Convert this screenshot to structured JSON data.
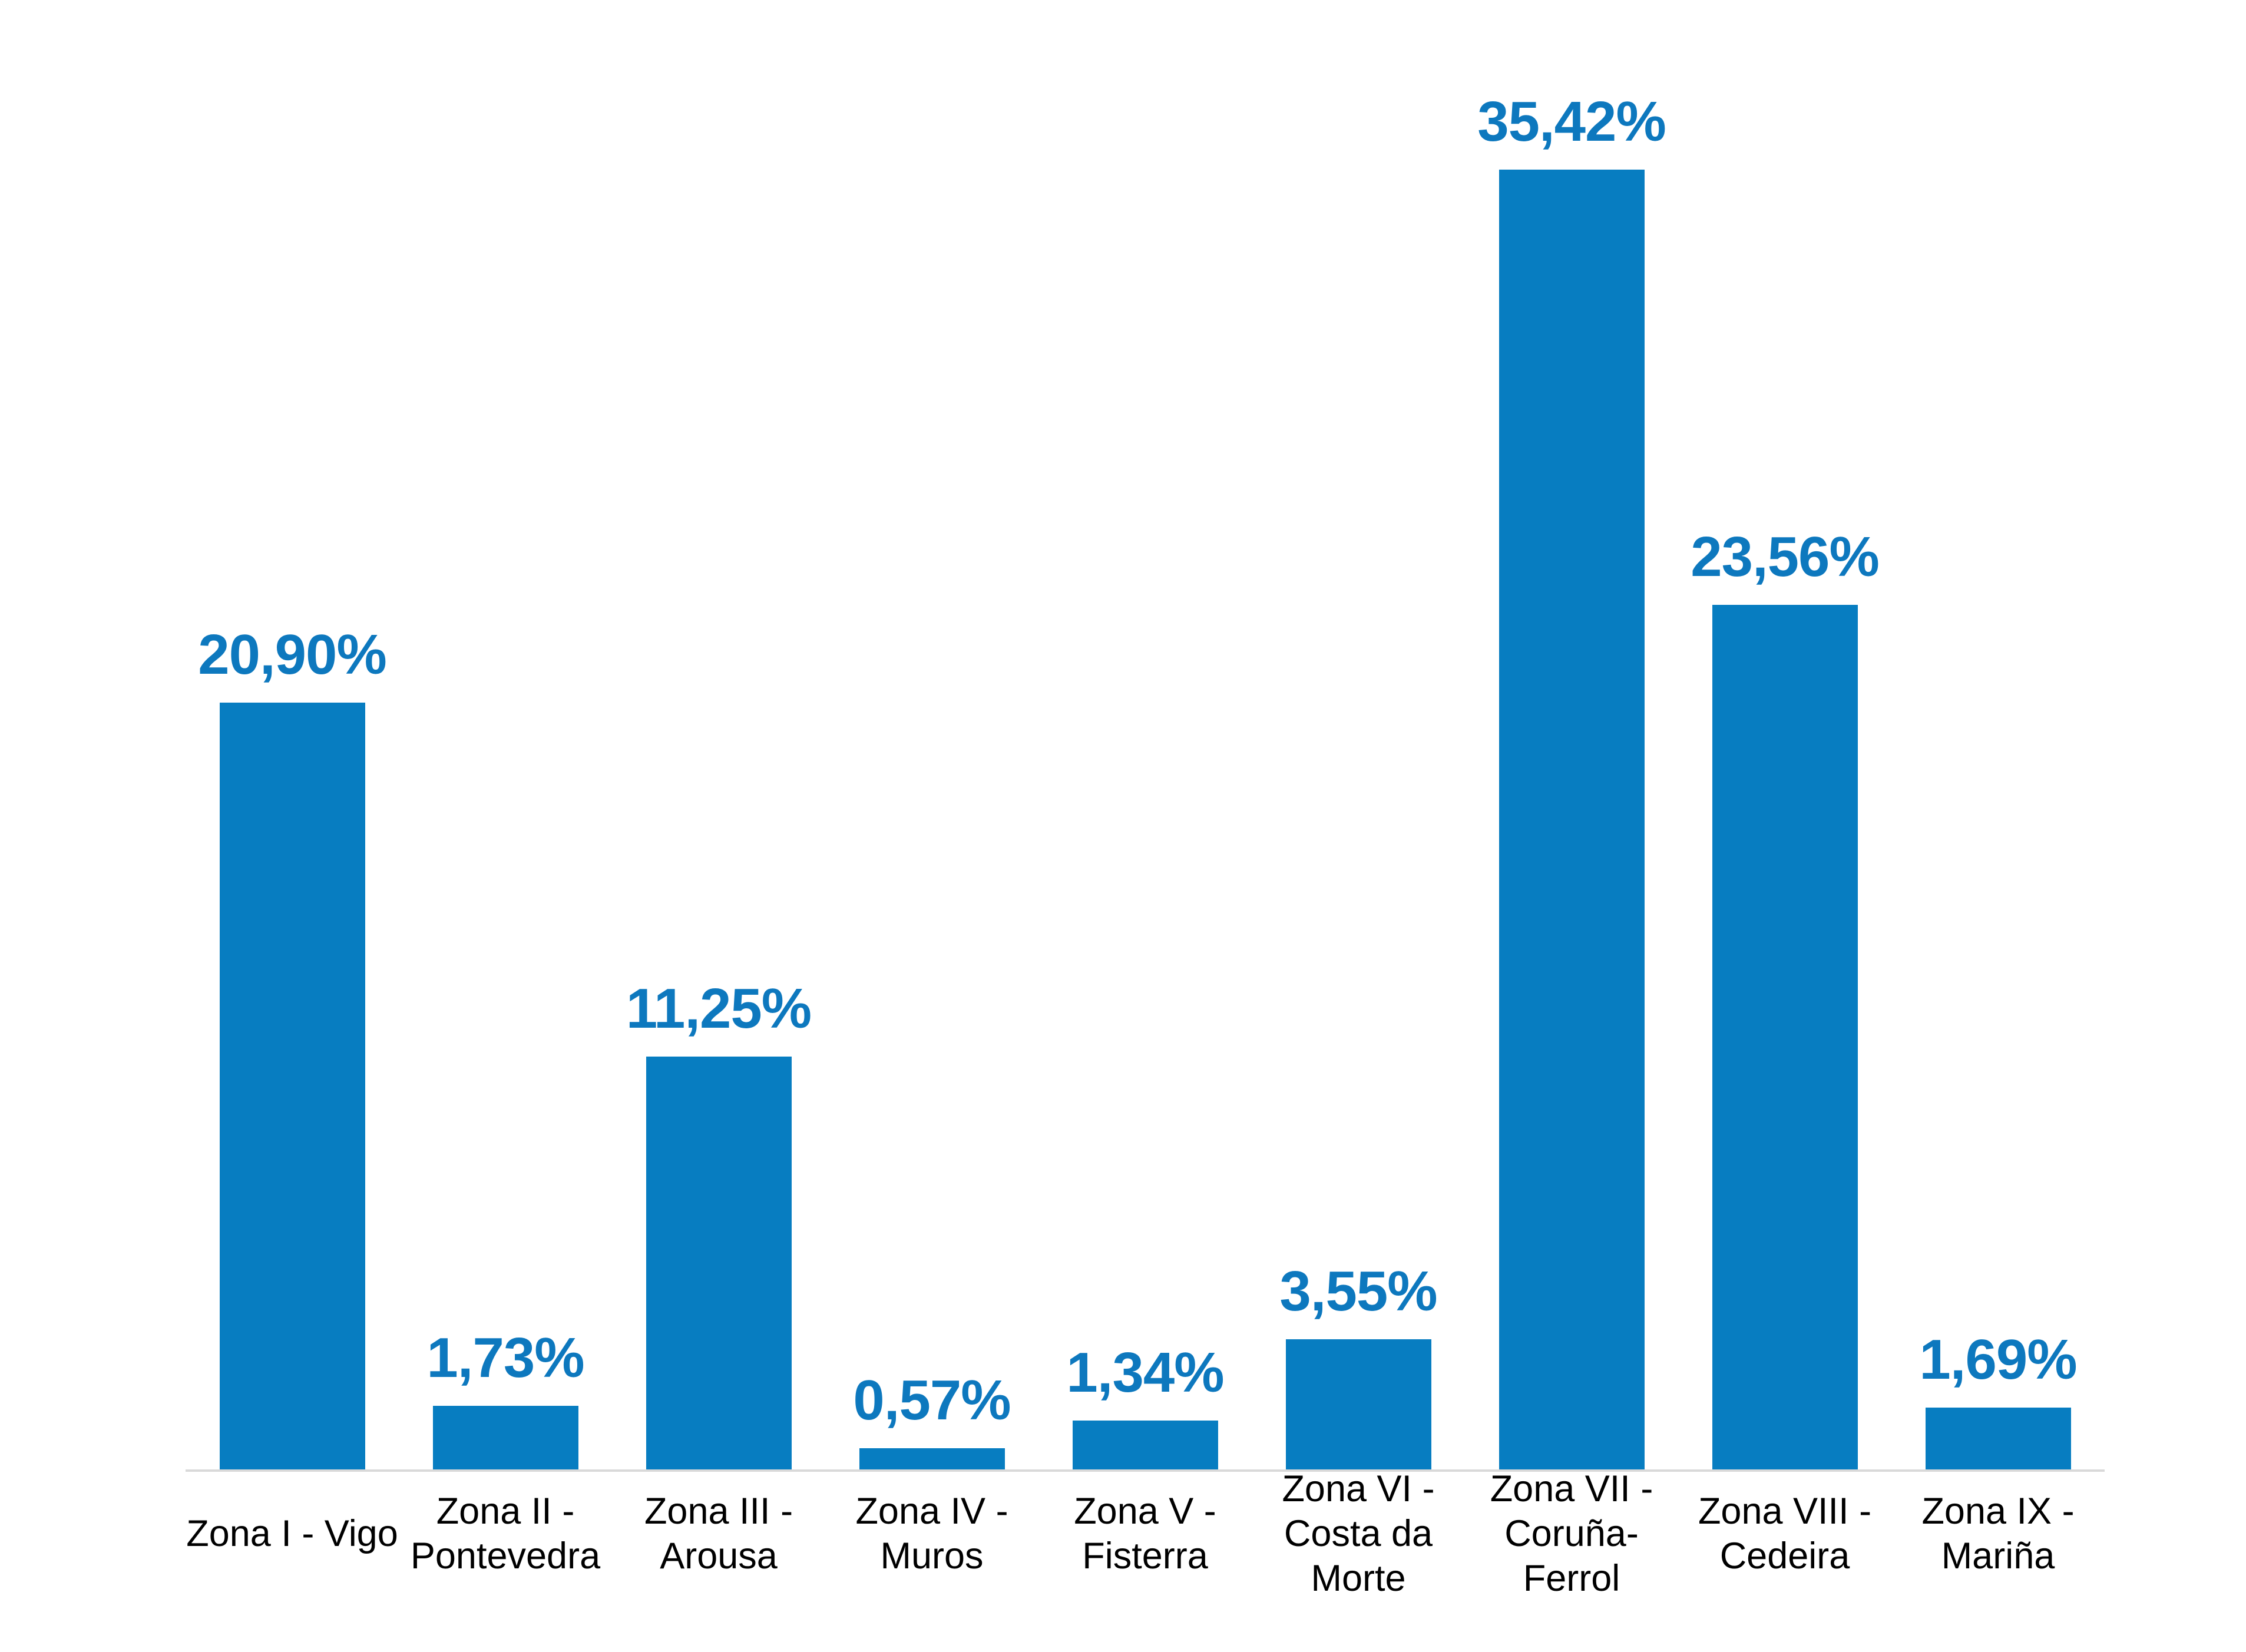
{
  "chart_data": {
    "type": "bar",
    "title": "",
    "xlabel": "",
    "ylabel": "",
    "ylim": [
      0,
      35.42
    ],
    "grid": false,
    "legend": false,
    "value_format": "percent, comma decimal separator, 2 decimals",
    "categories": [
      "Zona I - Vigo",
      "Zona II - Pontevedra",
      "Zona III - Arousa",
      "Zona IV - Muros",
      "Zona V - Fisterra",
      "Zona VI - Costa da Morte",
      "Zona VII - Coruña-Ferrol",
      "Zona VIII - Cedeira",
      "Zona IX - Mariña"
    ],
    "category_label_lines": [
      [
        "Zona I - Vigo"
      ],
      [
        "Zona II -",
        "Pontevedra"
      ],
      [
        "Zona III -",
        "Arousa"
      ],
      [
        "Zona IV -",
        "Muros"
      ],
      [
        "Zona V -",
        "Fisterra"
      ],
      [
        "Zona VI -",
        "Costa da",
        "Morte"
      ],
      [
        "Zona VII -",
        "Coruña-",
        "Ferrol"
      ],
      [
        "Zona VIII -",
        "Cedeira"
      ],
      [
        "Zona IX -",
        "Mariña"
      ]
    ],
    "values": [
      20.9,
      1.73,
      11.25,
      0.57,
      1.34,
      3.55,
      35.42,
      23.56,
      1.69
    ],
    "value_labels": [
      "20,90%",
      "1,73%",
      "11,25%",
      "0,57%",
      "1,34%",
      "3,55%",
      "35,42%",
      "23,56%",
      "1,69%"
    ],
    "colors": {
      "bar": "#077DC1",
      "value_label": "#0D78BE",
      "category_label": "#000000",
      "axis_line": "#D9D9D9",
      "background": "#FFFFFF"
    }
  }
}
